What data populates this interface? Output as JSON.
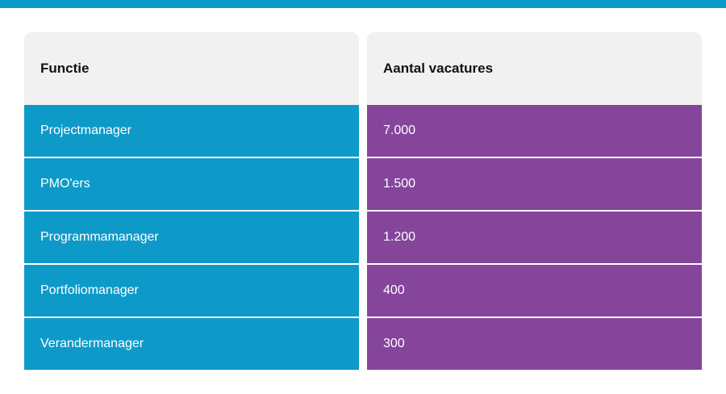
{
  "colors": {
    "accent_bar": "#0e9ac9",
    "header_bg": "#f1f1f1",
    "function_column": "#0e9ac9",
    "vacancies_column": "#84459b"
  },
  "table": {
    "headers": {
      "function": "Functie",
      "vacancies": "Aantal vacatures"
    },
    "rows": [
      {
        "function": "Projectmanager",
        "vacancies": "7.000"
      },
      {
        "function": "PMO'ers",
        "vacancies": "1.500"
      },
      {
        "function": "Programmamanager",
        "vacancies": "1.200"
      },
      {
        "function": "Portfoliomanager",
        "vacancies": "400"
      },
      {
        "function": "Verandermanager",
        "vacancies": "300"
      }
    ]
  }
}
